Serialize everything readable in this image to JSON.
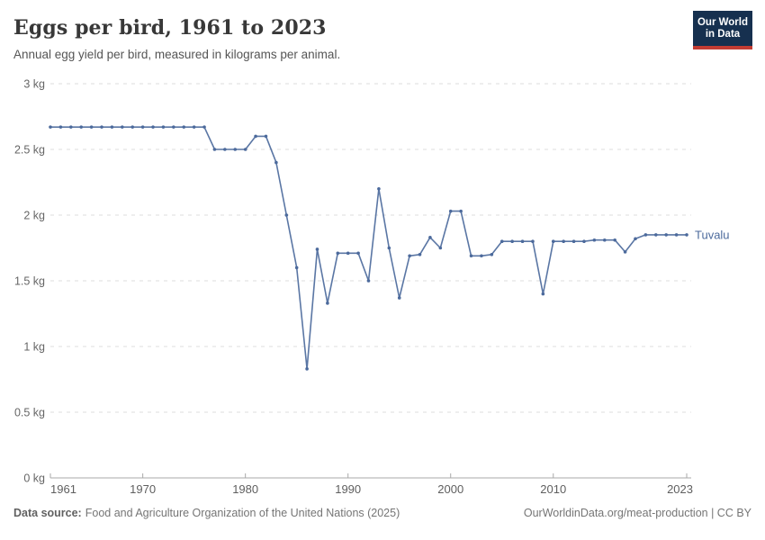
{
  "header": {
    "title": "Eggs per bird, 1961 to 2023",
    "subtitle": "Annual egg yield per bird, measured in kilograms per animal."
  },
  "logo": {
    "line1": "Our World",
    "line2": "in Data",
    "bg_color": "#16304F",
    "accent_color": "#C33C33"
  },
  "chart_data": {
    "type": "line",
    "title": "Eggs per bird, 1961 to 2023",
    "subtitle": "Annual egg yield per bird, measured in kilograms per animal.",
    "unit": "kg",
    "xlabel": "",
    "ylabel": "",
    "xlim": [
      1961,
      2023
    ],
    "ylim": [
      0,
      3
    ],
    "grid": "horizontal-dashed",
    "legend_position": "end-of-line-label",
    "y_ticks": [
      {
        "value": 0,
        "label": "0 kg"
      },
      {
        "value": 0.5,
        "label": "0.5 kg"
      },
      {
        "value": 1,
        "label": "1 kg"
      },
      {
        "value": 1.5,
        "label": "1.5 kg"
      },
      {
        "value": 2,
        "label": "2 kg"
      },
      {
        "value": 2.5,
        "label": "2.5 kg"
      },
      {
        "value": 3,
        "label": "3 kg"
      }
    ],
    "x_ticks": [
      1961,
      1970,
      1980,
      1990,
      2000,
      2010,
      2023
    ],
    "axis_color": "#a9a9a9",
    "gridline_color": "#dedede",
    "tick_label_color": "#666666",
    "series": [
      {
        "name": "Tuvalu",
        "color": "#4C6A9C",
        "years": [
          1961,
          1962,
          1963,
          1964,
          1965,
          1966,
          1967,
          1968,
          1969,
          1970,
          1971,
          1972,
          1973,
          1974,
          1975,
          1976,
          1977,
          1978,
          1979,
          1980,
          1981,
          1982,
          1983,
          1984,
          1985,
          1986,
          1987,
          1988,
          1989,
          1990,
          1991,
          1992,
          1993,
          1994,
          1995,
          1996,
          1997,
          1998,
          1999,
          2000,
          2001,
          2002,
          2003,
          2004,
          2005,
          2006,
          2007,
          2008,
          2009,
          2010,
          2011,
          2012,
          2013,
          2014,
          2015,
          2016,
          2017,
          2018,
          2019,
          2020,
          2021,
          2022,
          2023
        ],
        "values": [
          2.67,
          2.67,
          2.67,
          2.67,
          2.67,
          2.67,
          2.67,
          2.67,
          2.67,
          2.67,
          2.67,
          2.67,
          2.67,
          2.67,
          2.67,
          2.67,
          2.5,
          2.5,
          2.5,
          2.5,
          2.6,
          2.6,
          2.4,
          2.0,
          1.6,
          0.83,
          1.74,
          1.33,
          1.71,
          1.71,
          1.71,
          1.5,
          2.2,
          1.75,
          1.37,
          1.69,
          1.7,
          1.83,
          1.75,
          2.03,
          2.03,
          1.69,
          1.69,
          1.7,
          1.8,
          1.8,
          1.8,
          1.8,
          1.4,
          1.8,
          1.8,
          1.8,
          1.8,
          1.81,
          1.81,
          1.81,
          1.72,
          1.82,
          1.85,
          1.85,
          1.85,
          1.85,
          1.85
        ]
      }
    ]
  },
  "footer": {
    "datasource_label": "Data source:",
    "datasource_text": "Food and Agriculture Organization of the United Nations (2025)",
    "right_text": "OurWorldinData.org/meat-production | CC BY"
  }
}
